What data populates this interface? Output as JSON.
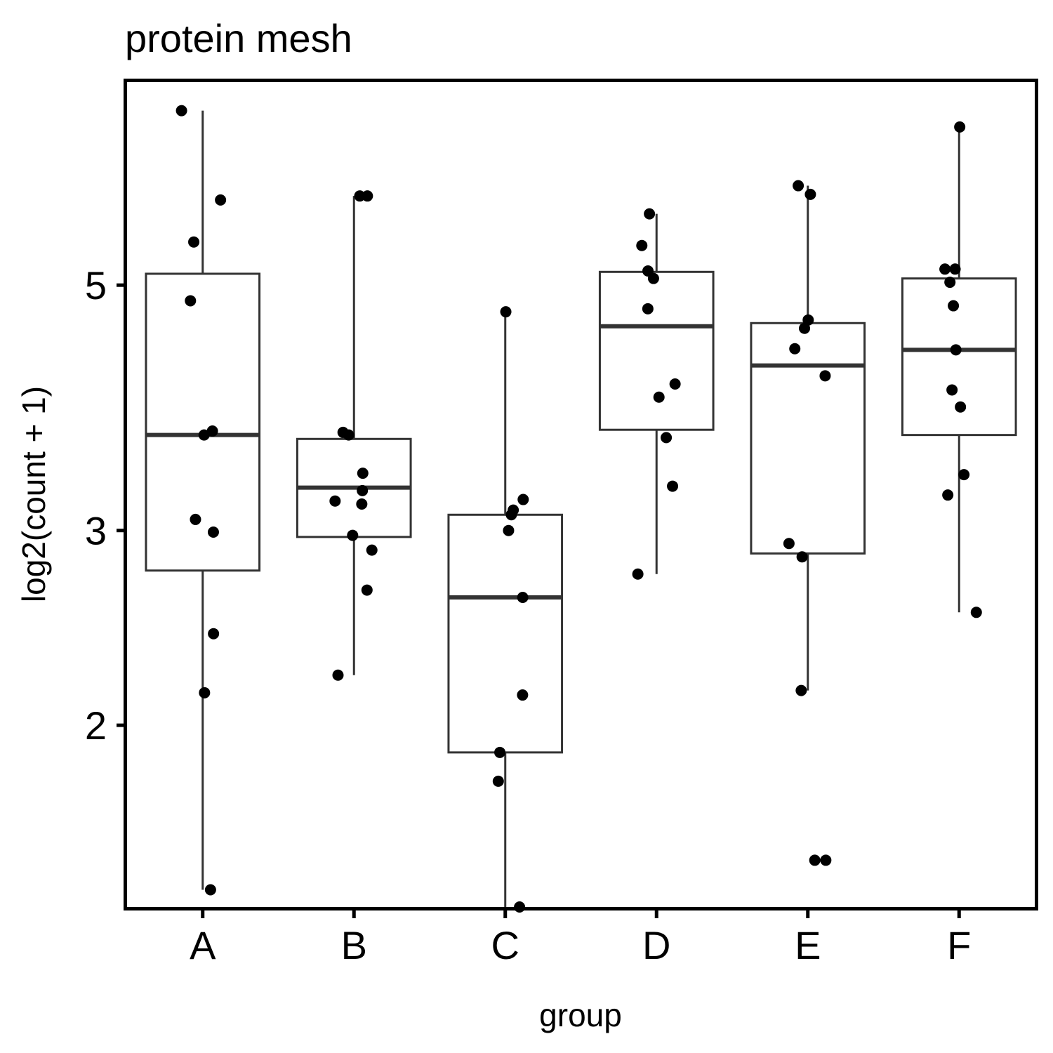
{
  "chart_data": {
    "type": "box",
    "title": "protein mesh",
    "xlabel": "group",
    "ylabel": "log2(count + 1)",
    "y_scale": "log2",
    "ylim": [
      1.37,
      7.63
    ],
    "yticks": [
      2,
      3,
      5
    ],
    "ytick_labels": [
      "2",
      "3",
      "5"
    ],
    "categories": [
      "A",
      "B",
      "C",
      "D",
      "E",
      "F"
    ],
    "series": [
      {
        "name": "A",
        "q1": 2.76,
        "median": 3.66,
        "q3": 5.12,
        "whisker_low": 1.42,
        "whisker_high": 7.19,
        "points": [
          7.19,
          5.97,
          5.47,
          4.84,
          3.69,
          3.66,
          3.07,
          2.99,
          2.42,
          2.14,
          1.42
        ]
      },
      {
        "name": "B",
        "q1": 2.96,
        "median": 3.28,
        "q3": 3.63,
        "whisker_low": 2.22,
        "whisker_high": 6.02,
        "points": [
          6.02,
          6.02,
          3.68,
          3.66,
          3.38,
          3.26,
          3.19,
          3.17,
          2.97,
          2.88,
          2.65,
          2.22
        ]
      },
      {
        "name": "C",
        "q1": 1.89,
        "median": 2.61,
        "q3": 3.1,
        "whisker_low": 1.37,
        "whisker_high": 4.7,
        "points": [
          4.73,
          3.2,
          3.13,
          3.1,
          3.0,
          2.61,
          2.13,
          1.89,
          1.78,
          1.37
        ]
      },
      {
        "name": "D",
        "q1": 3.7,
        "median": 4.59,
        "q3": 5.14,
        "whisker_low": 2.74,
        "whisker_high": 5.8,
        "points": [
          5.8,
          5.43,
          5.15,
          5.07,
          4.76,
          4.07,
          3.96,
          3.64,
          3.29,
          2.74
        ]
      },
      {
        "name": "E",
        "q1": 2.86,
        "median": 4.23,
        "q3": 4.62,
        "whisker_low": 2.15,
        "whisker_high": 6.15,
        "points": [
          6.15,
          6.04,
          4.65,
          4.57,
          4.38,
          4.14,
          2.92,
          2.84,
          2.15,
          1.51,
          1.51
        ]
      },
      {
        "name": "F",
        "q1": 3.66,
        "median": 4.37,
        "q3": 5.07,
        "whisker_low": 2.53,
        "whisker_high": 6.95,
        "points": [
          6.95,
          5.17,
          5.17,
          5.03,
          4.79,
          4.37,
          4.02,
          3.88,
          3.37,
          3.23,
          2.53
        ]
      }
    ]
  }
}
